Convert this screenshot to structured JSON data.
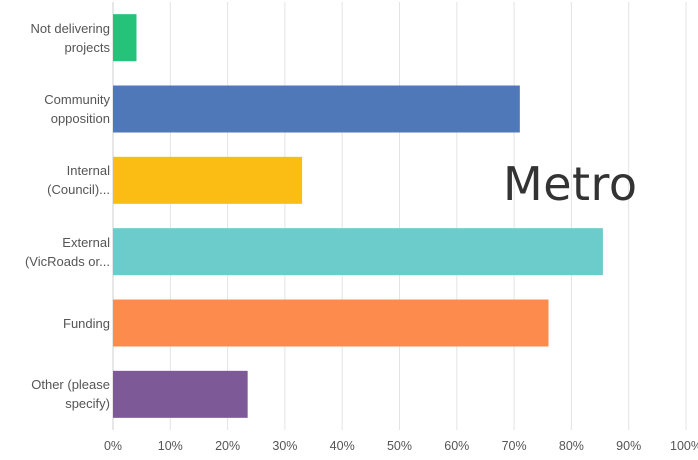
{
  "chart_data": {
    "type": "bar",
    "orientation": "horizontal",
    "categories": [
      [
        "Not delivering",
        "projects"
      ],
      [
        "Community",
        "opposition"
      ],
      [
        "Internal",
        "(Council)..."
      ],
      [
        "External",
        "(VicRoads or..."
      ],
      [
        "Funding"
      ],
      [
        "Other (please",
        "specify)"
      ]
    ],
    "values": [
      4.1,
      71,
      33,
      85.5,
      76,
      23.5
    ],
    "colors": [
      "#25c27a",
      "#4f78b8",
      "#fbbd13",
      "#6ccbcb",
      "#fd8b4e",
      "#7d5a97"
    ],
    "xlim": [
      0,
      100
    ],
    "ticks": [
      "0%",
      "10%",
      "20%",
      "30%",
      "40%",
      "50%",
      "60%",
      "70%",
      "80%",
      "90%",
      "100%"
    ],
    "grid": true
  },
  "overlay_text": "Metro"
}
